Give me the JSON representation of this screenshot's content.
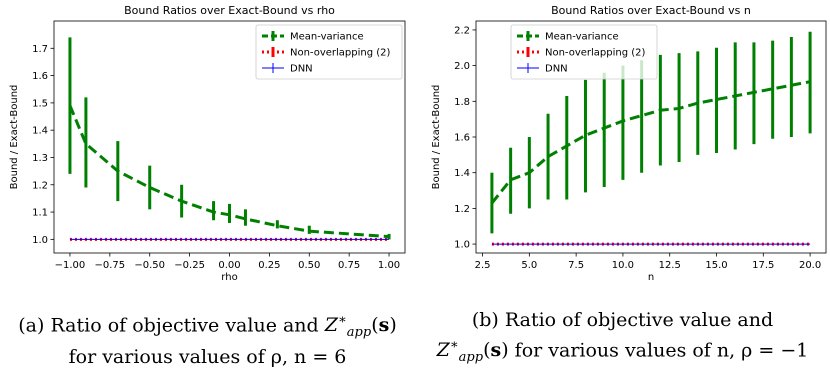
{
  "chart_data": [
    {
      "type": "line",
      "title": "Bound Ratios over Exact-Bound vs rho",
      "xlabel": "rho",
      "ylabel": "Bound / Exact-Bound",
      "xlim": [
        -1.1,
        1.1
      ],
      "ylim": [
        0.95,
        1.8
      ],
      "xticks": [
        "−1.00",
        "−0.75",
        "−0.50",
        "−0.25",
        "0.00",
        "0.25",
        "0.50",
        "0.75",
        "1.00"
      ],
      "xtick_values": [
        -1.0,
        -0.75,
        -0.5,
        -0.25,
        0.0,
        0.25,
        0.5,
        0.75,
        1.0
      ],
      "yticks": [
        "1.0",
        "1.1",
        "1.2",
        "1.3",
        "1.4",
        "1.5",
        "1.6",
        "1.7"
      ],
      "ytick_values": [
        1.0,
        1.1,
        1.2,
        1.3,
        1.4,
        1.5,
        1.6,
        1.7
      ],
      "grid": false,
      "legend_position": "top-right",
      "x": [
        -1.0,
        -0.9,
        -0.7,
        -0.5,
        -0.3,
        -0.1,
        0.0,
        0.1,
        0.3,
        0.5,
        1.0
      ],
      "series": [
        {
          "name": "Mean-variance",
          "color": "#008000",
          "style": "dashed",
          "values": [
            1.49,
            1.35,
            1.25,
            1.19,
            1.14,
            1.1,
            1.09,
            1.075,
            1.05,
            1.03,
            1.01
          ],
          "err_low": [
            1.24,
            1.19,
            1.14,
            1.11,
            1.08,
            1.07,
            1.06,
            1.05,
            1.04,
            1.02,
            1.0
          ],
          "err_high": [
            1.74,
            1.52,
            1.36,
            1.27,
            1.2,
            1.14,
            1.13,
            1.11,
            1.07,
            1.05,
            1.02
          ]
        },
        {
          "name": "Non-overlapping (2)",
          "color": "#ff0000",
          "style": "dotted",
          "values": [
            1.0,
            1.0,
            1.0,
            1.0,
            1.0,
            1.0,
            1.0,
            1.0,
            1.0,
            1.0,
            1.0
          ]
        },
        {
          "name": "DNN",
          "color": "#0000ff",
          "style": "solid",
          "values": [
            1.0,
            1.0,
            1.0,
            1.0,
            1.0,
            1.0,
            1.0,
            1.0,
            1.0,
            1.0,
            1.0
          ]
        }
      ]
    },
    {
      "type": "line",
      "title": "Bound Ratios over Exact-Bound vs n",
      "xlabel": "n",
      "ylabel": "Bound / Exact-Bound",
      "xlim": [
        2.15,
        20.85
      ],
      "ylim": [
        0.95,
        2.25
      ],
      "xticks": [
        "2.5",
        "5.0",
        "7.5",
        "10.0",
        "12.5",
        "15.0",
        "17.5",
        "20.0"
      ],
      "xtick_values": [
        2.5,
        5.0,
        7.5,
        10.0,
        12.5,
        15.0,
        17.5,
        20.0
      ],
      "yticks": [
        "1.0",
        "1.2",
        "1.4",
        "1.6",
        "1.8",
        "2.0",
        "2.2"
      ],
      "ytick_values": [
        1.0,
        1.2,
        1.4,
        1.6,
        1.8,
        2.0,
        2.2
      ],
      "grid": false,
      "legend_position": "top-left",
      "x": [
        3,
        4,
        5,
        6,
        7,
        8,
        9,
        10,
        11,
        12,
        13,
        14,
        15,
        16,
        17,
        18,
        19,
        20
      ],
      "series": [
        {
          "name": "Mean-variance",
          "color": "#008000",
          "style": "dashed",
          "values": [
            1.23,
            1.36,
            1.4,
            1.49,
            1.55,
            1.61,
            1.65,
            1.69,
            1.72,
            1.75,
            1.76,
            1.79,
            1.81,
            1.83,
            1.85,
            1.87,
            1.89,
            1.91
          ],
          "err_low": [
            1.06,
            1.17,
            1.2,
            1.25,
            1.25,
            1.29,
            1.32,
            1.36,
            1.4,
            1.44,
            1.46,
            1.5,
            1.51,
            1.53,
            1.56,
            1.59,
            1.6,
            1.62
          ],
          "err_high": [
            1.4,
            1.54,
            1.6,
            1.73,
            1.83,
            1.92,
            1.96,
            2.0,
            2.03,
            2.06,
            2.07,
            2.08,
            2.1,
            2.13,
            2.13,
            2.14,
            2.16,
            2.19
          ]
        },
        {
          "name": "Non-overlapping (2)",
          "color": "#ff0000",
          "style": "dotted",
          "values": [
            1.0,
            1.0,
            1.0,
            1.0,
            1.0,
            1.0,
            1.0,
            1.0,
            1.0,
            1.0,
            1.0,
            1.0,
            1.0,
            1.0,
            1.0,
            1.0,
            1.0,
            1.0
          ]
        },
        {
          "name": "DNN",
          "color": "#0000ff",
          "style": "solid",
          "values": [
            1.0,
            1.0,
            1.0,
            1.0,
            1.0,
            1.0,
            1.0,
            1.0,
            1.0,
            1.0,
            1.0,
            1.0,
            1.0,
            1.0,
            1.0,
            1.0,
            1.0,
            1.0
          ]
        }
      ]
    }
  ],
  "captions": {
    "a": {
      "line1_prefix": "(a) Ratio of objective value and ",
      "line1_math": "Z*app(s)",
      "line2": "for various values of ρ, n = 6"
    },
    "b": {
      "line1": "(b) Ratio of objective value and",
      "line2_math": "Z*app(s)",
      "line2_suffix": " for various values of n, ρ = −1"
    }
  }
}
